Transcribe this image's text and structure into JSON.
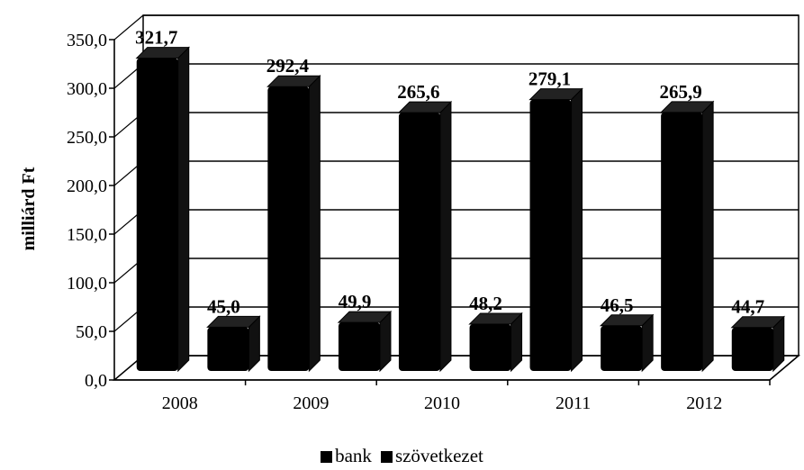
{
  "chart_data": {
    "type": "bar",
    "categories": [
      "2008",
      "2009",
      "2010",
      "2011",
      "2012"
    ],
    "series": [
      {
        "name": "bank",
        "values": [
          321.7,
          292.4,
          265.6,
          279.1,
          265.9
        ],
        "labels": [
          "321,7",
          "292,4",
          "265,6",
          "279,1",
          "265,9"
        ]
      },
      {
        "name": "szövetkezet",
        "values": [
          45.0,
          49.9,
          48.2,
          46.5,
          44.7
        ],
        "labels": [
          "45,0",
          "49,9",
          "48,2",
          "46,5",
          "44,7"
        ]
      }
    ],
    "ylabel": "milliárd Ft",
    "xlabel": "",
    "ylim": [
      0,
      350
    ],
    "yticks": [
      0,
      50,
      100,
      150,
      200,
      250,
      300,
      350
    ],
    "ytick_labels": [
      "0,0",
      "50,0",
      "100,0",
      "150,0",
      "200,0",
      "250,0",
      "300,0",
      "350,0"
    ],
    "grid": true,
    "legend_position": "bottom",
    "colors": {
      "bank": "#000000",
      "szövetkezet": "#000000"
    }
  }
}
